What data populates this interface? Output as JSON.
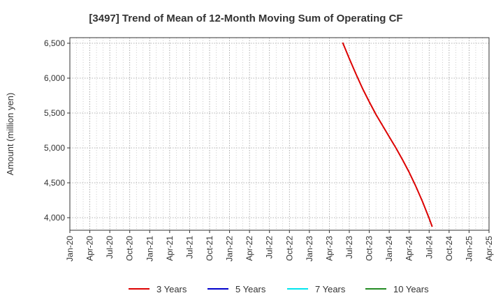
{
  "chart_data": {
    "type": "line",
    "title": "[3497]  Trend of Mean of 12-Month Moving Sum of Operating CF",
    "ylabel": "Amount (million yen)",
    "xlabel": "",
    "x_ticks": [
      "Jan-20",
      "Apr-20",
      "Jul-20",
      "Oct-20",
      "Jan-21",
      "Apr-21",
      "Jul-21",
      "Oct-21",
      "Jan-22",
      "Apr-22",
      "Jul-22",
      "Oct-22",
      "Jan-23",
      "Apr-23",
      "Jul-23",
      "Oct-23",
      "Jan-24",
      "Apr-24",
      "Jul-24",
      "Oct-24",
      "Jan-25",
      "Apr-25"
    ],
    "y_ticks": [
      "4,000",
      "4,500",
      "5,000",
      "5,500",
      "6,000",
      "6,500"
    ],
    "y_tick_values": [
      4000,
      4500,
      5000,
      5500,
      6000,
      6500
    ],
    "ylim": [
      3820,
      6580
    ],
    "x_range": [
      "2020-01",
      "2025-04"
    ],
    "grid": true,
    "legend_position": "bottom",
    "series": [
      {
        "name": "3 Years",
        "color": "#dd0000",
        "points": [
          {
            "x": "2023-06",
            "y": 6510
          },
          {
            "x": "2023-07",
            "y": 6280
          },
          {
            "x": "2023-08",
            "y": 6060
          },
          {
            "x": "2023-09",
            "y": 5850
          },
          {
            "x": "2023-10",
            "y": 5660
          },
          {
            "x": "2023-11",
            "y": 5480
          },
          {
            "x": "2023-12",
            "y": 5320
          },
          {
            "x": "2024-01",
            "y": 5160
          },
          {
            "x": "2024-02",
            "y": 5000
          },
          {
            "x": "2024-03",
            "y": 4830
          },
          {
            "x": "2024-04",
            "y": 4650
          },
          {
            "x": "2024-05",
            "y": 4450
          },
          {
            "x": "2024-06",
            "y": 4230
          },
          {
            "x": "2024-07",
            "y": 3990
          },
          {
            "x": "2024-07-15",
            "y": 3870
          }
        ]
      },
      {
        "name": "5 Years",
        "color": "#0000cc",
        "points": []
      },
      {
        "name": "7 Years",
        "color": "#00e5ee",
        "points": []
      },
      {
        "name": "10 Years",
        "color": "#228b22",
        "points": []
      }
    ]
  }
}
